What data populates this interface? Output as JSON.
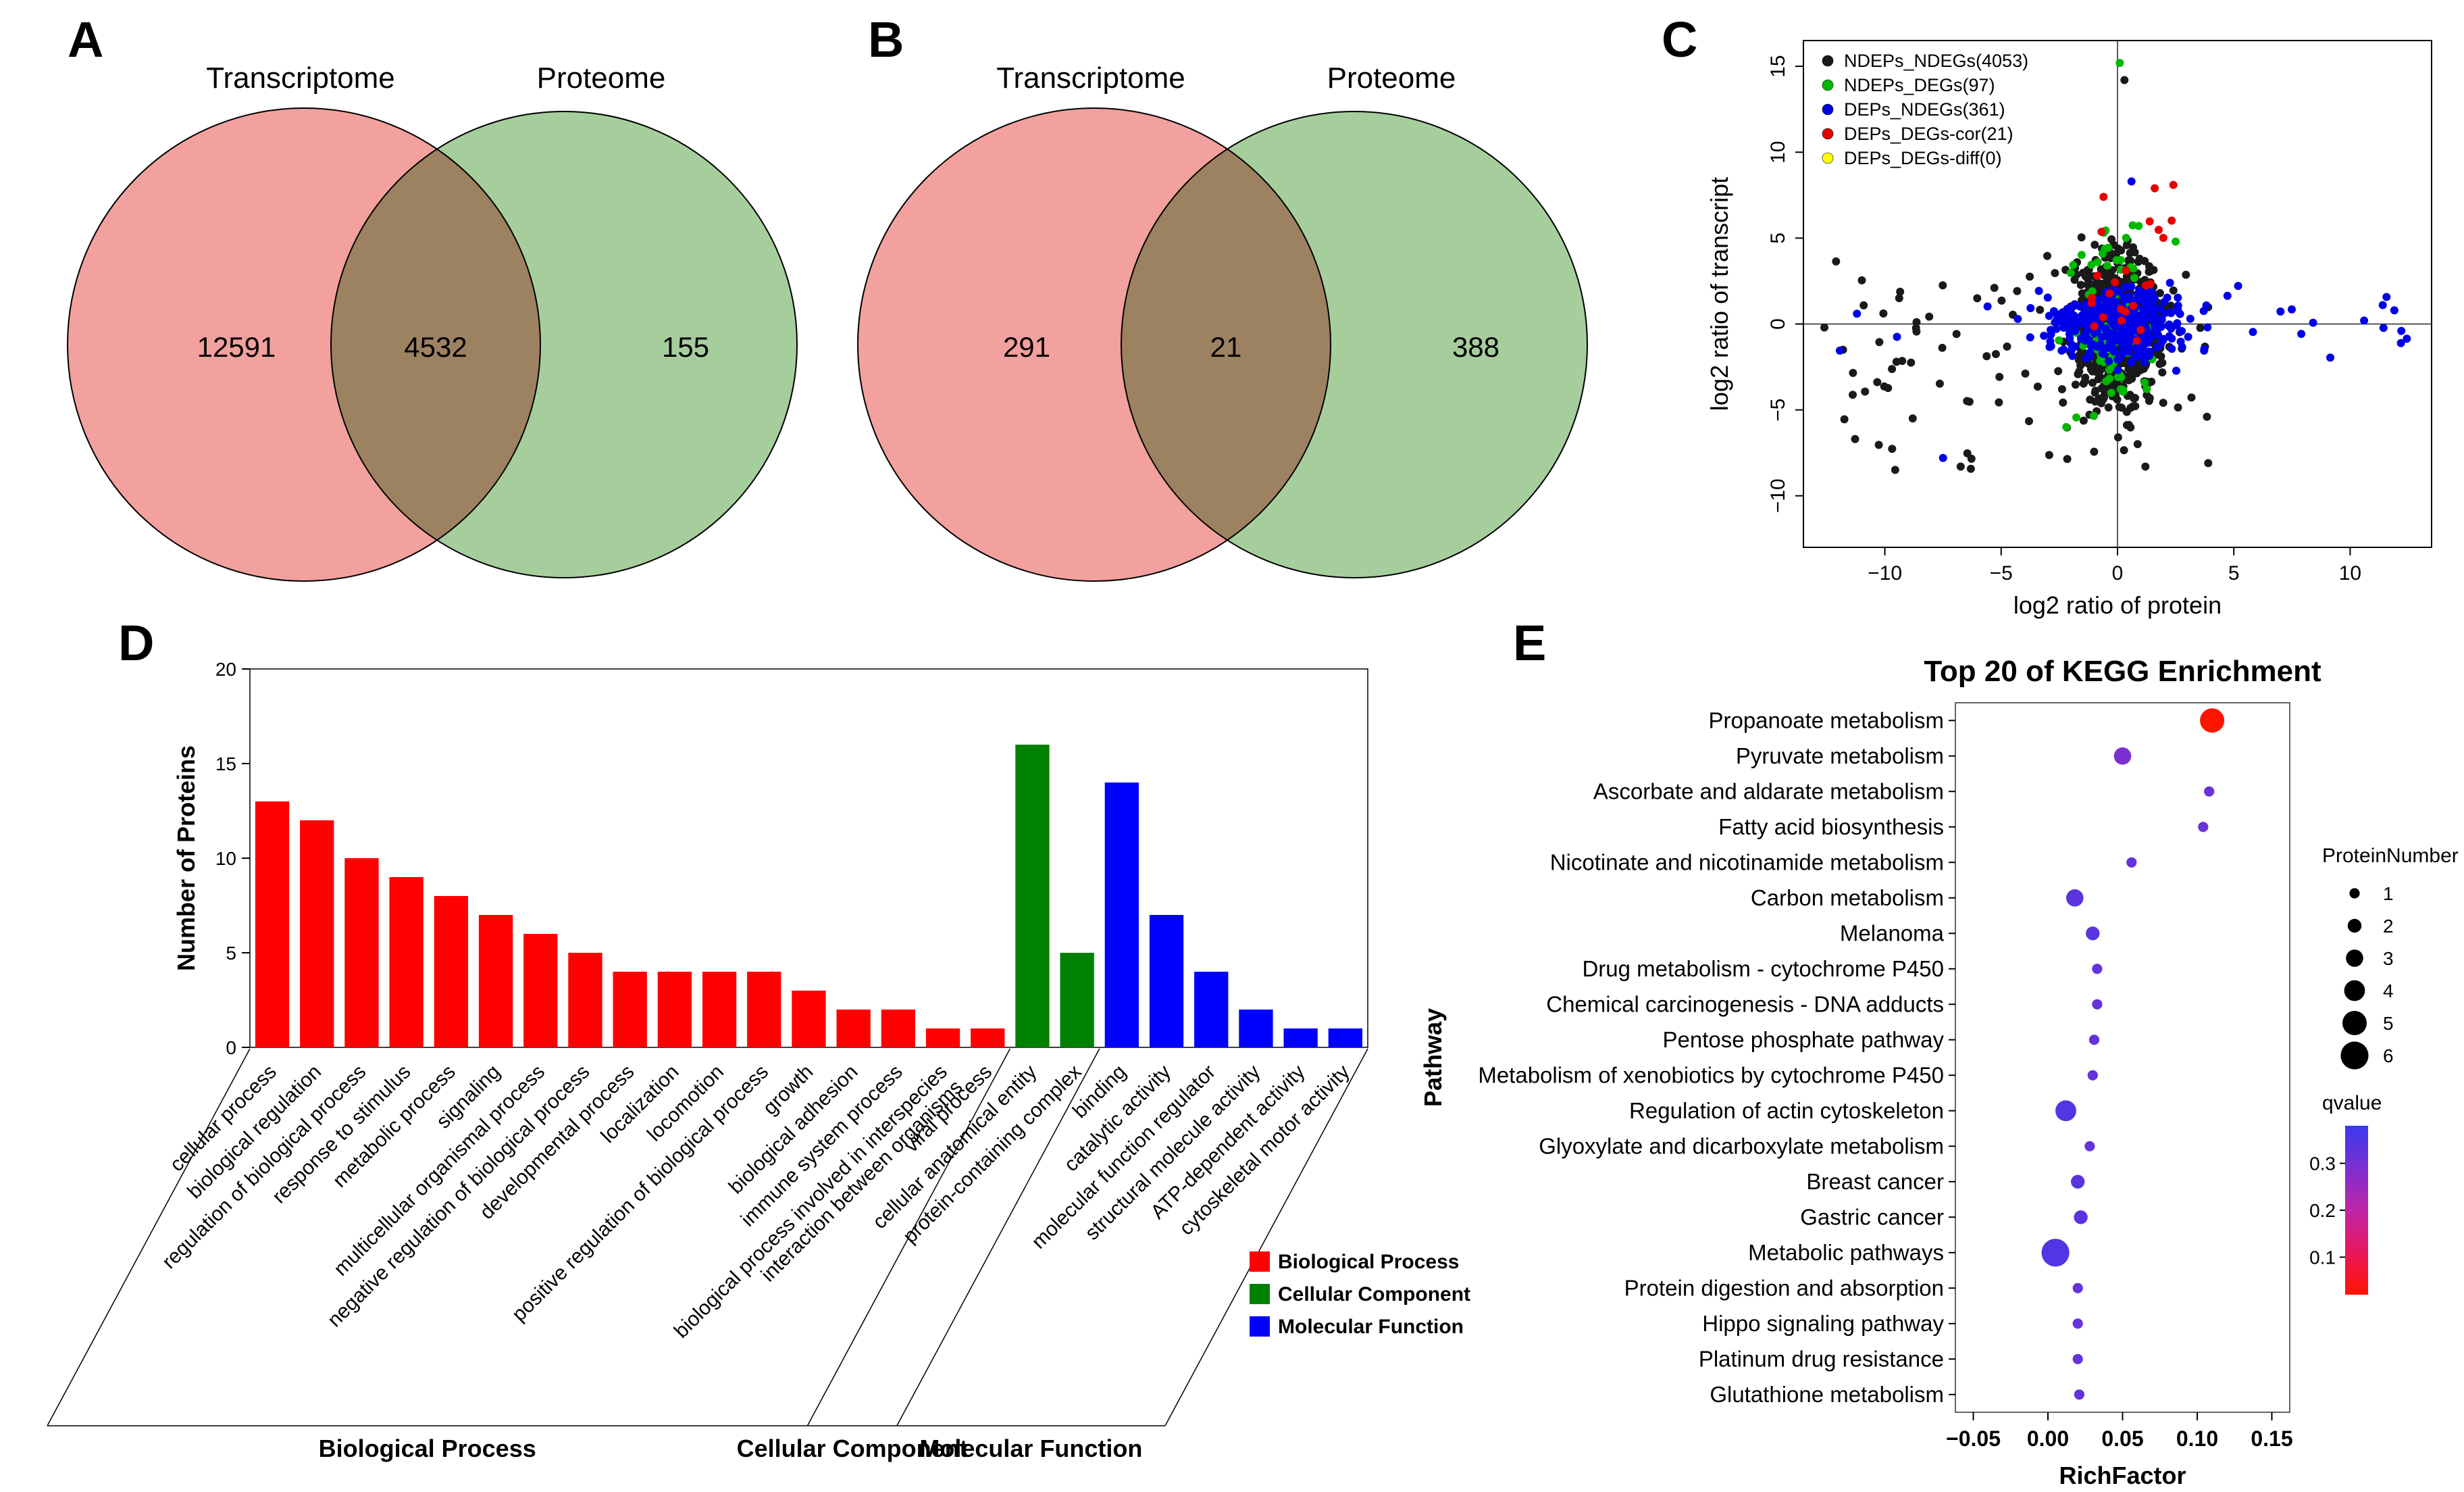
{
  "panels": {
    "A": {
      "label": "A"
    },
    "B": {
      "label": "B"
    },
    "C": {
      "label": "C"
    },
    "D": {
      "label": "D"
    },
    "E": {
      "label": "E"
    }
  },
  "chart_data": [
    {
      "id": "venn-transcriptome-proteome-all",
      "type": "venn",
      "panel": "A",
      "sets": [
        "Transcriptome",
        "Proteome"
      ],
      "left_only": 12591,
      "overlap": 4532,
      "right_only": 155,
      "left_label": "12591",
      "overlap_label": "4532",
      "right_label": "155",
      "colors": {
        "left": "#F2A19E",
        "right": "#A6CE9D"
      }
    },
    {
      "id": "venn-transcriptome-proteome-diff",
      "type": "venn",
      "panel": "B",
      "sets": [
        "Transcriptome",
        "Proteome"
      ],
      "left_only": 291,
      "overlap": 21,
      "right_only": 388,
      "left_label": "291",
      "overlap_label": "21",
      "right_label": "388",
      "colors": {
        "left": "#F2A19E",
        "right": "#A6CE9D"
      }
    },
    {
      "id": "transcript-protein-scatter",
      "type": "scatter",
      "panel": "C",
      "xlabel": "log2 ratio of protein",
      "ylabel": "log2 ratio of transcript",
      "xlim": [
        -13.5,
        13.5
      ],
      "ylim": [
        -13,
        16.5
      ],
      "xticks": [
        -10,
        -5,
        0,
        5,
        10
      ],
      "yticks": [
        -10,
        -5,
        0,
        5,
        10,
        15
      ],
      "legend_position": "top-left",
      "grid": false,
      "series": [
        {
          "name": "NDEPs_NDEGs(4053)",
          "count": 4053,
          "color": "#1A1A1A",
          "render": 850,
          "sx": 0.9,
          "sy": 2.1,
          "mx": 0,
          "my": -0.3,
          "outlier_frac": 0.1,
          "out_x": [
            -12.5,
            4
          ],
          "out_y": [
            -8.5,
            4
          ],
          "extras": [
            [
              -12.6,
              -0.2
            ],
            [
              -11.8,
              -1.5
            ],
            [
              -9.5,
              -2.2
            ],
            [
              3.9,
              -8.1
            ],
            [
              0.3,
              14.2
            ],
            [
              1.2,
              -8.3
            ]
          ]
        },
        {
          "name": "NDEPs_DEGs(97)",
          "count": 97,
          "color": "#00B800",
          "render": 97,
          "sx": 0.8,
          "sy": 2.4,
          "mx": -0.2,
          "my": -0.5,
          "outlier_frac": 0.05,
          "out_x": [
            -3,
            2.5
          ],
          "out_y": [
            -6.5,
            5
          ],
          "extras": [
            [
              0.1,
              15.2
            ],
            [
              2.5,
              4.8
            ],
            [
              -2.2,
              -6.0
            ]
          ]
        },
        {
          "name": "DEPs_NDEGs(361)",
          "count": 361,
          "color": "#0000E8",
          "render": 361,
          "sx": 1.5,
          "sy": 1.0,
          "mx": 0.2,
          "my": 0,
          "outlier_frac": 0.07,
          "out_x": [
            -12.5,
            12.8
          ],
          "out_y": [
            -2,
            2.5
          ],
          "extras": [
            [
              0.6,
              8.3
            ],
            [
              11.4,
              1.1
            ],
            [
              12.2,
              -0.4
            ],
            [
              -11.2,
              0.6
            ],
            [
              10.6,
              0.2
            ],
            [
              -7.5,
              -7.8
            ],
            [
              11.9,
              0.8
            ]
          ]
        },
        {
          "name": "DEPs_DEGs-cor(21)",
          "count": 21,
          "color": "#E80000",
          "render": 21,
          "sx": 1.1,
          "sy": 1.6,
          "mx": 0.4,
          "my": 0.8,
          "outlier_frac": 0.1,
          "out_x": [
            -1,
            2.5
          ],
          "out_y": [
            4,
            8
          ],
          "extras": [
            [
              1.6,
              7.9
            ],
            [
              -0.6,
              7.4
            ],
            [
              2.4,
              8.1
            ]
          ]
        },
        {
          "name": "DEPs_DEGs-diff(0)",
          "count": 0,
          "color": "#FFFF00",
          "render": 0,
          "sx": 1,
          "sy": 1,
          "mx": 0,
          "my": 0,
          "outlier_frac": 0,
          "out_x": [
            0,
            0
          ],
          "out_y": [
            0,
            0
          ],
          "extras": []
        }
      ]
    },
    {
      "id": "go-annotation-bars",
      "type": "bar",
      "panel": "D",
      "ylabel": "Number of Proteins",
      "ylim": [
        0,
        20
      ],
      "yticks": [
        0,
        5,
        10,
        15,
        20
      ],
      "grid": false,
      "groups": [
        {
          "name": "Biological Process",
          "color": "#FF0000",
          "categories": [
            "cellular process",
            "biological regulation",
            "regulation of biological process",
            "response to stimulus",
            "metabolic process",
            "signaling",
            "multicellular organismal process",
            "negative regulation of biological process",
            "developmental process",
            "localization",
            "locomotion",
            "positive regulation of biological process",
            "growth",
            "biological adhesion",
            "immune system process",
            "biological process involved in interspecies|interaction between organisms",
            "viral process"
          ],
          "values": [
            13,
            12,
            10,
            9,
            8,
            7,
            6,
            5,
            4,
            4,
            4,
            4,
            3,
            2,
            2,
            1,
            1
          ]
        },
        {
          "name": "Cellular Component",
          "color": "#008000",
          "categories": [
            "cellular anatomical entity",
            "protein-containing complex"
          ],
          "values": [
            16,
            5
          ]
        },
        {
          "name": "Molecular Function",
          "color": "#0000FF",
          "categories": [
            "binding",
            "catalytic activity",
            "molecular function regulator",
            "structural molecule activity",
            "ATP-dependent activity",
            "cytoskeletal motor activity"
          ],
          "values": [
            14,
            7,
            4,
            2,
            1,
            1
          ]
        }
      ],
      "legend": [
        "Biological Process",
        "Cellular Component",
        "Molecular Function"
      ]
    },
    {
      "id": "kegg-enrichment-bubbles",
      "type": "bubble",
      "panel": "E",
      "title": "Top 20 of KEGG Enrichment",
      "xlabel": "RichFactor",
      "ylabel": "Pathway",
      "xlim": [
        -0.062,
        0.162
      ],
      "xticks": [
        -0.05,
        0,
        0.05,
        0.1,
        0.15
      ],
      "xtick_labels": [
        "−0.05",
        "0.00",
        "0.05",
        "0.10",
        "0.15"
      ],
      "pathways": [
        {
          "name": "Propanoate metabolism",
          "rich_factor": 0.11,
          "protein_number": 5,
          "qvalue": 0.01
        },
        {
          "name": "Pyruvate metabolism",
          "rich_factor": 0.05,
          "protein_number": 3,
          "qvalue": 0.3
        },
        {
          "name": "Ascorbate and aldarate metabolism",
          "rich_factor": 0.108,
          "protein_number": 1,
          "qvalue": 0.32
        },
        {
          "name": "Fatty acid biosynthesis",
          "rich_factor": 0.104,
          "protein_number": 1,
          "qvalue": 0.32
        },
        {
          "name": "Nicotinate and nicotinamide metabolism",
          "rich_factor": 0.056,
          "protein_number": 1,
          "qvalue": 0.33
        },
        {
          "name": "Carbon metabolism",
          "rich_factor": 0.018,
          "protein_number": 3,
          "qvalue": 0.34
        },
        {
          "name": "Melanoma",
          "rich_factor": 0.03,
          "protein_number": 2,
          "qvalue": 0.34
        },
        {
          "name": "Drug metabolism - cytochrome P450",
          "rich_factor": 0.033,
          "protein_number": 1,
          "qvalue": 0.33
        },
        {
          "name": "Chemical carcinogenesis - DNA adducts",
          "rich_factor": 0.033,
          "protein_number": 1,
          "qvalue": 0.33
        },
        {
          "name": "Pentose phosphate pathway",
          "rich_factor": 0.031,
          "protein_number": 1,
          "qvalue": 0.33
        },
        {
          "name": "Metabolism of xenobiotics by cytochrome P450",
          "rich_factor": 0.03,
          "protein_number": 1,
          "qvalue": 0.33
        },
        {
          "name": "Regulation of actin cytoskeleton",
          "rich_factor": 0.012,
          "protein_number": 4,
          "qvalue": 0.35
        },
        {
          "name": "Glyoxylate and dicarboxylate metabolism",
          "rich_factor": 0.028,
          "protein_number": 1,
          "qvalue": 0.33
        },
        {
          "name": "Breast cancer",
          "rich_factor": 0.02,
          "protein_number": 2,
          "qvalue": 0.34
        },
        {
          "name": "Gastric cancer",
          "rich_factor": 0.022,
          "protein_number": 2,
          "qvalue": 0.34
        },
        {
          "name": "Metabolic pathways",
          "rich_factor": 0.005,
          "protein_number": 6,
          "qvalue": 0.35
        },
        {
          "name": "Protein digestion and absorption",
          "rich_factor": 0.02,
          "protein_number": 1,
          "qvalue": 0.33
        },
        {
          "name": "Hippo signaling pathway",
          "rich_factor": 0.02,
          "protein_number": 1,
          "qvalue": 0.33
        },
        {
          "name": "Platinum drug resistance",
          "rich_factor": 0.02,
          "protein_number": 1,
          "qvalue": 0.33
        },
        {
          "name": "Glutathione metabolism",
          "rich_factor": 0.021,
          "protein_number": 1,
          "qvalue": 0.33
        }
      ],
      "legends": {
        "size": {
          "title": "ProteinNumber",
          "values": [
            1,
            2,
            3,
            4,
            5,
            6
          ]
        },
        "color": {
          "title": "qvalue",
          "ticks": [
            0.3,
            0.2,
            0.1
          ],
          "stops": [
            "#3A3AEE",
            "#7B2FD0",
            "#C026A8",
            "#E8175C",
            "#FF1400"
          ],
          "qmin": 0.02,
          "qmax": 0.38
        }
      }
    }
  ]
}
